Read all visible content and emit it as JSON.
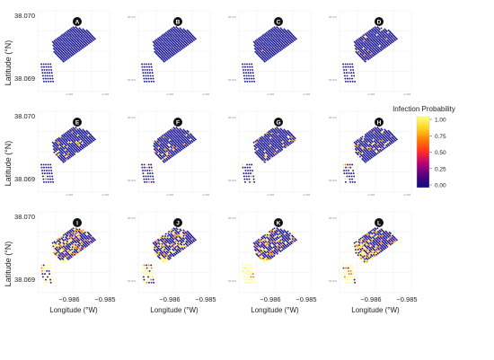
{
  "figure": {
    "ylabel": "Latitude (°N)",
    "xlabel": "Longitude (°W)",
    "y_ticks": [
      "38.070",
      "38.069"
    ],
    "x_ticks": [
      "−0.986",
      "−0.985"
    ],
    "small_y_ticks": [
      "38.070",
      "38.069"
    ],
    "small_x_ticks": [
      "-0.986",
      "-0.985"
    ],
    "legend": {
      "title": "Infection Probability",
      "ticks": [
        "1.00",
        "0.75",
        "0.50",
        "0.25",
        "0.00"
      ],
      "colormap": [
        "#ffff80",
        "#ffd21e",
        "#ff7800",
        "#ff2a2a",
        "#b4007a",
        "#50007a",
        "#0d0b85"
      ]
    },
    "dot_colors": {
      "none": "#1c1894",
      "low": "#6f1fa8",
      "mid": "#ff7a00",
      "high": "#ffe85a",
      "full": "#ffff8c"
    }
  },
  "chart_data": {
    "type": "scatter",
    "x_unit": "longitude (°W)",
    "y_unit": "latitude (°N)",
    "xlim": [
      -0.9868,
      -0.9847
    ],
    "ylim": [
      38.0685,
      38.0703
    ],
    "color_scale": [
      0,
      1
    ],
    "panels": [
      {
        "label": "A",
        "infected_fraction": 0.0
      },
      {
        "label": "B",
        "infected_fraction": 0.0
      },
      {
        "label": "C",
        "infected_fraction": 0.01
      },
      {
        "label": "D",
        "infected_fraction": 0.06
      },
      {
        "label": "E",
        "infected_fraction": 0.1
      },
      {
        "label": "F",
        "infected_fraction": 0.11
      },
      {
        "label": "G",
        "infected_fraction": 0.14
      },
      {
        "label": "H",
        "infected_fraction": 0.18
      },
      {
        "label": "I",
        "infected_fraction": 0.4
      },
      {
        "label": "J",
        "infected_fraction": 0.4
      },
      {
        "label": "K",
        "infected_fraction": 0.43
      },
      {
        "label": "L",
        "infected_fraction": 0.48
      }
    ]
  }
}
